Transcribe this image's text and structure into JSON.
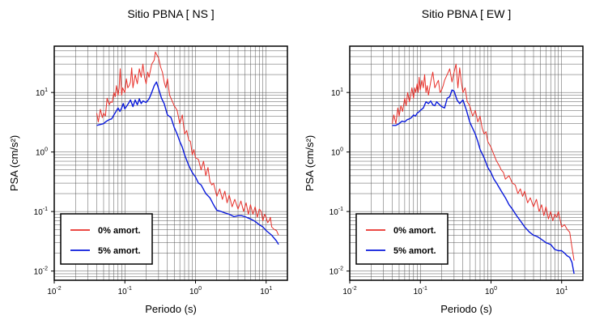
{
  "chart_data": [
    {
      "type": "line",
      "title": "Sitio PBNA [ NS ]",
      "xlabel": "Periodo (s)",
      "ylabel": "PSA (cm/s²)",
      "x_scale": "log",
      "y_scale": "log",
      "xlim": [
        0.01,
        20
      ],
      "ylim": [
        0.007,
        60
      ],
      "x_ticks": [
        {
          "v": 0.01,
          "label": "10",
          "exp": "-2"
        },
        {
          "v": 0.1,
          "label": "10",
          "exp": "-1"
        },
        {
          "v": 1,
          "label": "10",
          "exp": "0"
        },
        {
          "v": 10,
          "label": "10",
          "exp": "1"
        }
      ],
      "y_ticks": [
        {
          "v": 0.01,
          "label": "10",
          "exp": "-2"
        },
        {
          "v": 0.1,
          "label": "10",
          "exp": "-1"
        },
        {
          "v": 1,
          "label": "10",
          "exp": "0"
        },
        {
          "v": 10,
          "label": "10",
          "exp": "1"
        }
      ],
      "grid": true,
      "legend_position": "bottom-left",
      "series": [
        {
          "name": "0% amort.",
          "color": "#e8302a",
          "x": [
            0.04,
            0.042,
            0.045,
            0.048,
            0.05,
            0.053,
            0.056,
            0.06,
            0.063,
            0.066,
            0.07,
            0.073,
            0.076,
            0.08,
            0.083,
            0.086,
            0.09,
            0.093,
            0.096,
            0.1,
            0.105,
            0.11,
            0.115,
            0.12,
            0.125,
            0.13,
            0.14,
            0.15,
            0.16,
            0.17,
            0.18,
            0.19,
            0.2,
            0.21,
            0.22,
            0.24,
            0.26,
            0.27,
            0.28,
            0.3,
            0.32,
            0.34,
            0.36,
            0.38,
            0.4,
            0.43,
            0.46,
            0.5,
            0.55,
            0.6,
            0.65,
            0.7,
            0.75,
            0.8,
            0.85,
            0.9,
            0.95,
            1.0,
            1.1,
            1.2,
            1.3,
            1.4,
            1.5,
            1.6,
            1.7,
            1.8,
            2.0,
            2.2,
            2.4,
            2.6,
            2.8,
            3.0,
            3.3,
            3.6,
            4.0,
            4.4,
            4.8,
            5.2,
            5.6,
            6.0,
            6.5,
            7.0,
            7.5,
            8.0,
            8.5,
            9.0,
            9.5,
            10,
            10.5,
            11,
            11.5,
            12,
            13,
            14,
            15
          ],
          "y": [
            4.5,
            3.2,
            5.2,
            3.8,
            4.5,
            4.0,
            8.0,
            6.2,
            7.0,
            6.8,
            10.0,
            8.5,
            13.0,
            9.0,
            12.0,
            25.0,
            9.0,
            12.0,
            11.0,
            10.0,
            17.0,
            12.0,
            13.0,
            15.0,
            26.0,
            12.0,
            20.0,
            14.0,
            25.0,
            18.0,
            30.0,
            18.0,
            14.0,
            22.0,
            18.0,
            30.0,
            35.0,
            48.0,
            44.0,
            38.0,
            27.0,
            22.0,
            15.0,
            12.0,
            17.0,
            9.0,
            7.5,
            6.0,
            5.0,
            3.0,
            4.2,
            2.0,
            2.3,
            1.6,
            1.5,
            0.9,
            1.1,
            0.8,
            0.75,
            0.5,
            0.7,
            0.4,
            0.55,
            0.32,
            0.28,
            0.3,
            0.18,
            0.24,
            0.16,
            0.22,
            0.14,
            0.19,
            0.12,
            0.16,
            0.11,
            0.15,
            0.1,
            0.14,
            0.09,
            0.13,
            0.09,
            0.12,
            0.08,
            0.11,
            0.1,
            0.07,
            0.09,
            0.08,
            0.065,
            0.07,
            0.08,
            0.055,
            0.05,
            0.048,
            0.04
          ]
        },
        {
          "name": "5% amort.",
          "color": "#0a1adc",
          "x": [
            0.04,
            0.045,
            0.05,
            0.055,
            0.06,
            0.065,
            0.07,
            0.075,
            0.08,
            0.085,
            0.09,
            0.095,
            0.1,
            0.11,
            0.12,
            0.13,
            0.14,
            0.15,
            0.16,
            0.17,
            0.18,
            0.2,
            0.22,
            0.24,
            0.26,
            0.28,
            0.3,
            0.33,
            0.36,
            0.4,
            0.45,
            0.5,
            0.55,
            0.6,
            0.65,
            0.7,
            0.8,
            0.9,
            1.0,
            1.1,
            1.2,
            1.4,
            1.6,
            1.8,
            2.0,
            2.3,
            2.6,
            3.0,
            3.5,
            4.0,
            4.5,
            5.0,
            6.0,
            7.0,
            8.0,
            9.0,
            10,
            12,
            14,
            15
          ],
          "y": [
            2.8,
            2.9,
            3.0,
            3.3,
            3.5,
            3.6,
            4.2,
            4.8,
            5.5,
            4.8,
            5.5,
            6.5,
            5.3,
            6.3,
            7.5,
            5.8,
            7.5,
            6.2,
            7.8,
            6.5,
            7.2,
            6.8,
            7.8,
            10.0,
            13.0,
            15.0,
            11.5,
            8.0,
            6.5,
            4.2,
            3.8,
            2.6,
            2.0,
            1.5,
            1.2,
            0.9,
            0.6,
            0.45,
            0.38,
            0.3,
            0.28,
            0.2,
            0.17,
            0.13,
            0.105,
            0.1,
            0.095,
            0.09,
            0.082,
            0.085,
            0.085,
            0.082,
            0.075,
            0.068,
            0.06,
            0.055,
            0.048,
            0.04,
            0.032,
            0.028
          ]
        }
      ]
    },
    {
      "type": "line",
      "title": "Sitio PBNA [ EW ]",
      "xlabel": "Periodo (s)",
      "ylabel": "PSA (cm/s²)",
      "x_scale": "log",
      "y_scale": "log",
      "xlim": [
        0.01,
        20
      ],
      "ylim": [
        0.007,
        60
      ],
      "x_ticks": [
        {
          "v": 0.01,
          "label": "10",
          "exp": "-2"
        },
        {
          "v": 0.1,
          "label": "10",
          "exp": "-1"
        },
        {
          "v": 1,
          "label": "10",
          "exp": "0"
        },
        {
          "v": 10,
          "label": "10",
          "exp": "1"
        }
      ],
      "y_ticks": [
        {
          "v": 0.01,
          "label": "10",
          "exp": "-2"
        },
        {
          "v": 0.1,
          "label": "10",
          "exp": "-1"
        },
        {
          "v": 1,
          "label": "10",
          "exp": "0"
        },
        {
          "v": 10,
          "label": "10",
          "exp": "1"
        }
      ],
      "grid": true,
      "legend_position": "bottom-left",
      "series": [
        {
          "name": "0% amort.",
          "color": "#e8302a",
          "x": [
            0.04,
            0.042,
            0.045,
            0.048,
            0.05,
            0.053,
            0.056,
            0.06,
            0.063,
            0.066,
            0.07,
            0.073,
            0.076,
            0.08,
            0.083,
            0.086,
            0.09,
            0.093,
            0.096,
            0.1,
            0.105,
            0.11,
            0.115,
            0.12,
            0.125,
            0.13,
            0.14,
            0.15,
            0.16,
            0.17,
            0.18,
            0.19,
            0.2,
            0.21,
            0.22,
            0.24,
            0.26,
            0.28,
            0.3,
            0.32,
            0.34,
            0.36,
            0.38,
            0.4,
            0.43,
            0.46,
            0.5,
            0.55,
            0.6,
            0.65,
            0.7,
            0.75,
            0.8,
            0.85,
            0.9,
            1.0,
            1.1,
            1.2,
            1.3,
            1.4,
            1.5,
            1.6,
            1.8,
            2.0,
            2.2,
            2.4,
            2.6,
            2.8,
            3.0,
            3.3,
            3.6,
            4.0,
            4.4,
            4.8,
            5.2,
            5.6,
            6.0,
            6.5,
            7.0,
            7.5,
            8.0,
            8.5,
            9.0,
            10,
            11,
            12,
            13,
            14,
            15
          ],
          "y": [
            3.0,
            4.2,
            3.0,
            5.5,
            4.0,
            6.0,
            4.8,
            8.0,
            6.0,
            10.0,
            7.0,
            9.0,
            12.0,
            8.0,
            12.0,
            10.0,
            14.0,
            10.0,
            18.0,
            11.0,
            16.0,
            12.0,
            20.0,
            10.0,
            13.0,
            9.0,
            15.0,
            22.0,
            12.0,
            14.0,
            16.0,
            10.0,
            11.0,
            13.0,
            16.0,
            20.0,
            25.0,
            15.0,
            22.0,
            30.0,
            12.0,
            26.0,
            15.0,
            10.0,
            12.0,
            7.0,
            6.0,
            4.0,
            5.0,
            3.2,
            4.0,
            2.5,
            2.0,
            2.2,
            1.5,
            1.2,
            0.9,
            0.7,
            0.6,
            0.5,
            0.45,
            0.35,
            0.4,
            0.3,
            0.28,
            0.2,
            0.24,
            0.18,
            0.22,
            0.14,
            0.17,
            0.12,
            0.16,
            0.1,
            0.13,
            0.085,
            0.12,
            0.075,
            0.1,
            0.07,
            0.09,
            0.08,
            0.1,
            0.055,
            0.06,
            0.05,
            0.045,
            0.025,
            0.015
          ],
          "y_tail_note": ""
        },
        {
          "name": "5% amort.",
          "color": "#0a1adc",
          "x": [
            0.04,
            0.045,
            0.05,
            0.055,
            0.06,
            0.065,
            0.07,
            0.075,
            0.08,
            0.085,
            0.09,
            0.095,
            0.1,
            0.11,
            0.12,
            0.13,
            0.14,
            0.15,
            0.16,
            0.17,
            0.18,
            0.2,
            0.22,
            0.24,
            0.26,
            0.28,
            0.3,
            0.33,
            0.36,
            0.4,
            0.45,
            0.5,
            0.55,
            0.6,
            0.65,
            0.7,
            0.8,
            0.9,
            1.0,
            1.1,
            1.2,
            1.4,
            1.6,
            1.8,
            2.0,
            2.3,
            2.6,
            3.0,
            3.5,
            4.0,
            4.5,
            5.0,
            6.0,
            7.0,
            8.0,
            9.0,
            10,
            11,
            12,
            13,
            14,
            15
          ],
          "y": [
            2.8,
            2.8,
            3.0,
            3.3,
            3.2,
            3.5,
            3.6,
            3.8,
            4.2,
            4.0,
            4.5,
            4.7,
            5.0,
            5.5,
            7.0,
            6.5,
            7.2,
            6.2,
            6.0,
            7.0,
            6.5,
            5.8,
            5.5,
            8.0,
            8.5,
            11.0,
            10.5,
            7.5,
            6.5,
            7.5,
            5.0,
            3.2,
            2.5,
            2.0,
            1.5,
            1.1,
            0.8,
            0.55,
            0.45,
            0.35,
            0.3,
            0.22,
            0.17,
            0.13,
            0.11,
            0.085,
            0.07,
            0.055,
            0.045,
            0.04,
            0.038,
            0.035,
            0.03,
            0.028,
            0.023,
            0.022,
            0.022,
            0.02,
            0.018,
            0.017,
            0.014,
            0.009
          ]
        }
      ]
    }
  ]
}
